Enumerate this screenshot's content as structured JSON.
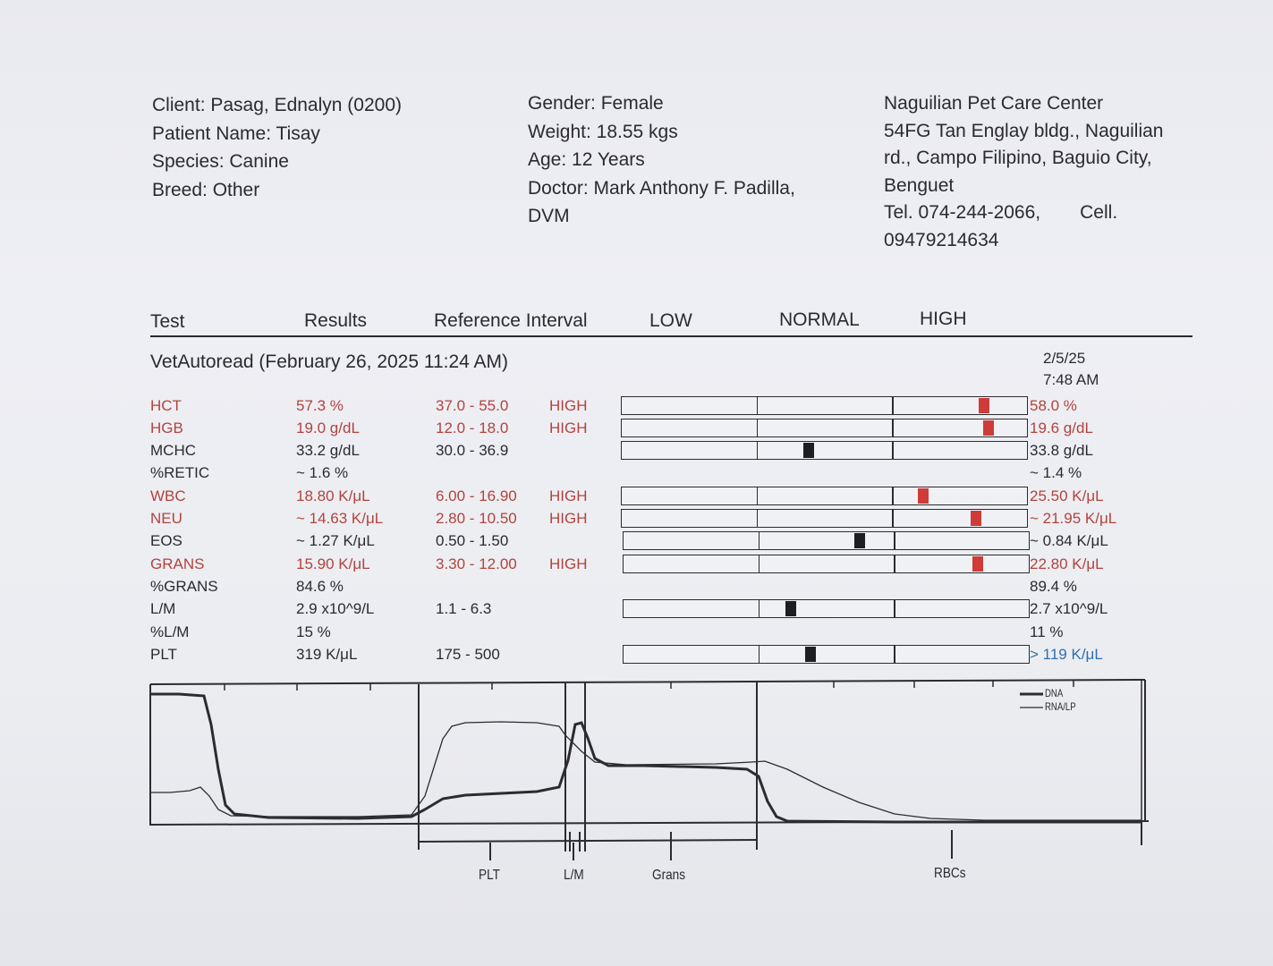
{
  "header": {
    "client": "Client: Pasag, Ednalyn (0200)",
    "patient": "Patient Name: Tisay",
    "species": "Species: Canine",
    "breed": "Breed: Other",
    "gender": "Gender: Female",
    "weight": "Weight: 18.55 kgs",
    "age": "Age: 12 Years",
    "doctor_line1": "Doctor: Mark Anthony F. Padilla,",
    "doctor_line2": "DVM",
    "clinic_line1": "Naguilian Pet Care Center",
    "clinic_line2": "54FG Tan Englay bldg., Naguilian",
    "clinic_line3": "rd., Campo Filipino, Baguio City,",
    "clinic_line4": "Benguet",
    "tel": "Tel. 074-244-2066,",
    "cell_label": "Cell.",
    "cell_number": "09479214634"
  },
  "columns": {
    "test": "Test",
    "results": "Results",
    "reference": "Reference Interval",
    "low": "LOW",
    "normal": "NORMAL",
    "high": "HIGH"
  },
  "run": {
    "title": "VetAutoread (February 26, 2025 11:24 AM)",
    "prev_date": "2/5/25",
    "prev_time": "7:48 AM"
  },
  "rows": [
    {
      "test": "HCT",
      "result": "57.3 %",
      "ref": "37.0 - 55.0",
      "flag": "HIGH",
      "prev": "58.0 %",
      "status": "high",
      "bar": true,
      "marker": 0.89,
      "prev_color": "red"
    },
    {
      "test": "HGB",
      "result": "19.0 g/dL",
      "ref": "12.0 - 18.0",
      "flag": "HIGH",
      "prev": "19.6 g/dL",
      "status": "high",
      "bar": true,
      "marker": 0.9,
      "prev_color": "red"
    },
    {
      "test": "MCHC",
      "result": "33.2 g/dL",
      "ref": "30.0 - 36.9",
      "flag": "",
      "prev": "33.8 g/dL",
      "status": "normal",
      "bar": true,
      "marker": 0.46,
      "prev_color": "dark"
    },
    {
      "test": "%RETIC",
      "result": "~ 1.6 %",
      "ref": "",
      "flag": "",
      "prev": "~ 1.4 %",
      "status": "normal",
      "bar": false,
      "prev_color": "dark"
    },
    {
      "test": "WBC",
      "result": "18.80 K/μL",
      "ref": "6.00 - 16.90",
      "flag": "HIGH",
      "prev": "25.50 K/μL",
      "status": "high",
      "bar": true,
      "marker": 0.74,
      "prev_color": "red"
    },
    {
      "test": "NEU",
      "result": "~ 14.63 K/μL",
      "ref": "2.80 - 10.50",
      "flag": "HIGH",
      "prev": "~ 21.95 K/μL",
      "status": "high",
      "bar": true,
      "marker": 0.87,
      "prev_color": "red"
    },
    {
      "test": "EOS",
      "result": "~ 1.27 K/μL",
      "ref": "0.50 - 1.50",
      "flag": "",
      "prev": "~ 0.84 K/μL",
      "status": "normal",
      "bar": true,
      "marker": 0.58,
      "prev_color": "dark"
    },
    {
      "test": "GRANS",
      "result": "15.90 K/μL",
      "ref": "3.30 - 12.00",
      "flag": "HIGH",
      "prev": "22.80 K/μL",
      "status": "high",
      "bar": true,
      "marker": 0.87,
      "prev_color": "red"
    },
    {
      "test": "%GRANS",
      "result": "84.6 %",
      "ref": "",
      "flag": "",
      "prev": "89.4 %",
      "status": "normal",
      "bar": false,
      "prev_color": "dark"
    },
    {
      "test": "L/M",
      "result": "2.9 x10^9/L",
      "ref": "1.1 - 6.3",
      "flag": "",
      "prev": "2.7 x10^9/L",
      "status": "normal",
      "bar": true,
      "marker": 0.41,
      "prev_color": "dark"
    },
    {
      "test": "%L/M",
      "result": "15 %",
      "ref": "",
      "flag": "",
      "prev": "11 %",
      "status": "normal",
      "bar": false,
      "prev_color": "dark"
    },
    {
      "test": "PLT",
      "result": "319 K/μL",
      "ref": "175 - 500",
      "flag": "",
      "prev": "> 119 K/μL",
      "status": "normal",
      "bar": true,
      "marker": 0.46,
      "prev_color": "blue"
    }
  ],
  "histogram": {
    "legend_dna": "DNA",
    "legend_rna": "RNA/LP",
    "labels": [
      "PLT",
      "L/M",
      "Grans",
      "RBCs"
    ]
  },
  "colors": {
    "high": "#b2433d",
    "marker_high": "#cf3b36",
    "marker_normal": "#1e1e22",
    "blue": "#2f6fb0"
  }
}
